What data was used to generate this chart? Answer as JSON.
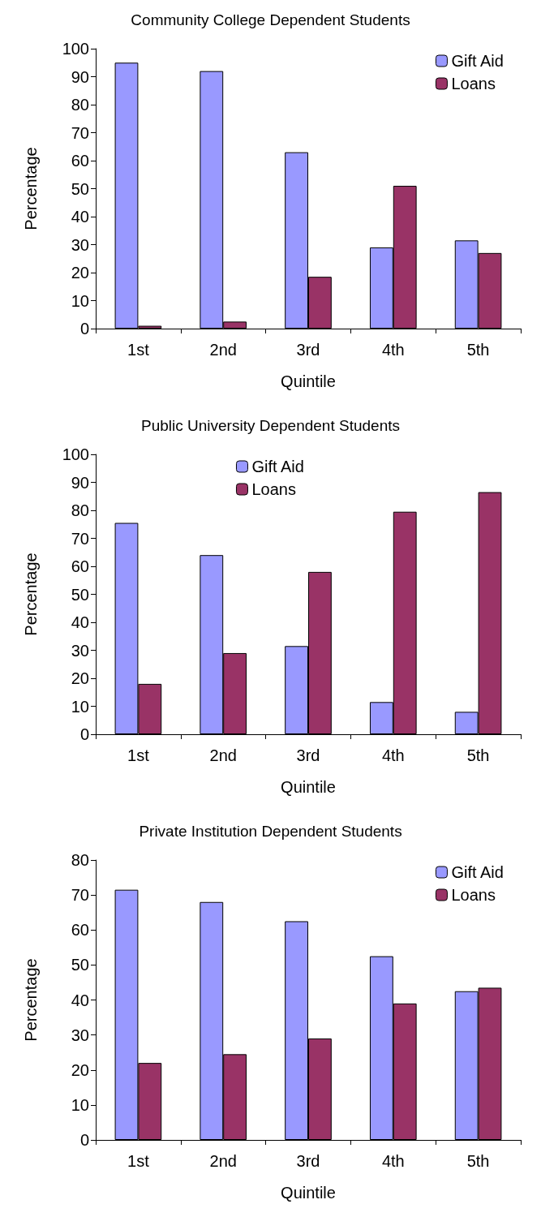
{
  "chart_data": [
    {
      "type": "bar",
      "title": "Community College Dependent Students",
      "xlabel": "Quintile",
      "ylabel": "Percentage",
      "categories": [
        "1st",
        "2nd",
        "3rd",
        "4th",
        "5th"
      ],
      "series": [
        {
          "name": "Gift Aid",
          "color": "#9999ff",
          "values": [
            95,
            92,
            63,
            29,
            31.5
          ]
        },
        {
          "name": "Loans",
          "color": "#993366",
          "values": [
            1,
            2.5,
            18.5,
            51,
            27
          ]
        }
      ],
      "ylim": [
        0,
        100
      ],
      "yticks": [
        0,
        10,
        20,
        30,
        40,
        50,
        60,
        70,
        80,
        90,
        100
      ],
      "grid": false,
      "legend": "top right"
    },
    {
      "type": "bar",
      "title": "Public University Dependent Students",
      "xlabel": "Quintile",
      "ylabel": "Percentage",
      "categories": [
        "1st",
        "2nd",
        "3rd",
        "4th",
        "5th"
      ],
      "series": [
        {
          "name": "Gift Aid",
          "color": "#9999ff",
          "values": [
            75.5,
            64,
            31.5,
            11.5,
            8
          ]
        },
        {
          "name": "Loans",
          "color": "#993366",
          "values": [
            18,
            29,
            58,
            79.5,
            86.5
          ]
        }
      ],
      "ylim": [
        0,
        100
      ],
      "yticks": [
        0,
        10,
        20,
        30,
        40,
        50,
        60,
        70,
        80,
        90,
        100
      ],
      "grid": false,
      "legend": "top"
    },
    {
      "type": "bar",
      "title": "Private Institution Dependent Students",
      "xlabel": "Quintile",
      "ylabel": "Percentage",
      "categories": [
        "1st",
        "2nd",
        "3rd",
        "4th",
        "5th"
      ],
      "series": [
        {
          "name": "Gift Aid",
          "color": "#9999ff",
          "values": [
            71.5,
            68,
            62.5,
            52.5,
            42.5
          ]
        },
        {
          "name": "Loans",
          "color": "#993366",
          "values": [
            22,
            24.5,
            29,
            39,
            43.5
          ]
        }
      ],
      "ylim": [
        0,
        80
      ],
      "yticks": [
        0,
        10,
        20,
        30,
        40,
        50,
        60,
        70,
        80
      ],
      "grid": false,
      "legend": "top right"
    }
  ]
}
